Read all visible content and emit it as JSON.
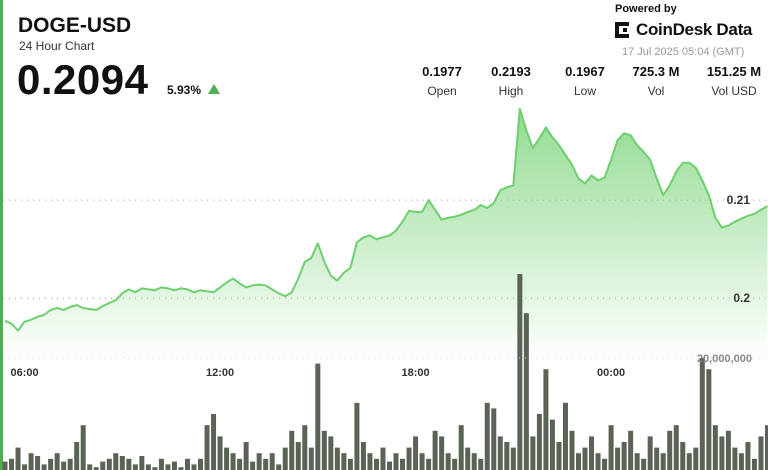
{
  "header": {
    "symbol": "DOGE-USD",
    "subtitle": "24 Hour Chart",
    "price": "0.2094",
    "change": "5.93%",
    "powered_by": "Powered by",
    "brand": "CoinDesk Data",
    "timestamp": "17 Jul 2025 05:04 (GMT)"
  },
  "stats": [
    {
      "value": "0.1977",
      "label": "Open"
    },
    {
      "value": "0.2193",
      "label": "High"
    },
    {
      "value": "0.1967",
      "label": "Low"
    },
    {
      "value": "725.3 M",
      "label": "Vol"
    },
    {
      "value": "151.25 M",
      "label": "Vol USD"
    }
  ],
  "chart_data": {
    "type": "area",
    "categories": [
      null,
      null,
      null,
      "06:00",
      null,
      null,
      null,
      null,
      null,
      null,
      null,
      null,
      null,
      null,
      null,
      null,
      null,
      null,
      null,
      null,
      null,
      null,
      null,
      null,
      null,
      null,
      null,
      null,
      null,
      null,
      null,
      null,
      null,
      "12:00",
      null,
      null,
      null,
      null,
      null,
      null,
      null,
      null,
      null,
      null,
      null,
      null,
      null,
      null,
      null,
      null,
      null,
      null,
      null,
      null,
      null,
      null,
      null,
      null,
      null,
      null,
      null,
      null,
      null,
      "18:00",
      null,
      null,
      null,
      null,
      null,
      null,
      null,
      null,
      null,
      null,
      null,
      null,
      null,
      null,
      null,
      null,
      null,
      null,
      null,
      null,
      null,
      null,
      null,
      null,
      null,
      null,
      null,
      null,
      null,
      "00:00",
      null,
      null,
      null,
      null,
      null,
      null,
      null,
      null,
      null,
      null,
      null,
      null,
      null,
      null,
      null,
      null,
      null,
      null,
      null,
      null,
      null,
      null,
      null,
      null
    ],
    "values": [
      0.1977,
      0.1974,
      0.1967,
      0.1976,
      0.1978,
      0.1981,
      0.1983,
      0.1988,
      0.199,
      0.1988,
      0.1991,
      0.1993,
      0.199,
      0.1989,
      0.1988,
      0.1992,
      0.1995,
      0.1998,
      0.2005,
      0.2009,
      0.2006,
      0.201,
      0.2009,
      0.2008,
      0.2011,
      0.201,
      0.2008,
      0.201,
      0.2009,
      0.2006,
      0.2008,
      0.2007,
      0.2006,
      0.2011,
      0.2016,
      0.202,
      0.2015,
      0.2011,
      0.2013,
      0.2014,
      0.2013,
      0.2009,
      0.2005,
      0.2002,
      0.2006,
      0.202,
      0.2037,
      0.2041,
      0.2056,
      0.2037,
      0.2023,
      0.2018,
      0.2026,
      0.2031,
      0.2057,
      0.2062,
      0.2064,
      0.206,
      0.2062,
      0.2064,
      0.2069,
      0.2078,
      0.2089,
      0.2088,
      0.2088,
      0.21,
      0.209,
      0.208,
      0.2082,
      0.2083,
      0.2085,
      0.2088,
      0.209,
      0.2095,
      0.2092,
      0.2097,
      0.211,
      0.2113,
      0.2115,
      0.2193,
      0.2171,
      0.2153,
      0.2163,
      0.2174,
      0.2164,
      0.2156,
      0.2146,
      0.2136,
      0.2122,
      0.2117,
      0.2125,
      0.212,
      0.2123,
      0.2141,
      0.2161,
      0.2168,
      0.2166,
      0.2156,
      0.2149,
      0.2141,
      0.2122,
      0.2105,
      0.2115,
      0.2129,
      0.2138,
      0.2138,
      0.2133,
      0.212,
      0.2105,
      0.2082,
      0.2072,
      0.2074,
      0.2078,
      0.2081,
      0.2084,
      0.2086,
      0.209,
      0.2094
    ],
    "color": "#6dcf6d",
    "ylim": [
      0.1937,
      0.2202
    ],
    "yticks": [
      0.2,
      0.21
    ],
    "grid": true,
    "volume": {
      "type": "bar",
      "color": "#5b6356",
      "values": [
        1500000,
        2000000,
        4000000,
        1000000,
        3000000,
        2500000,
        1000000,
        2000000,
        3000000,
        1500000,
        2000000,
        5000000,
        8000000,
        1000000,
        500000,
        1500000,
        2000000,
        3000000,
        2500000,
        2000000,
        1000000,
        2500000,
        1000000,
        500000,
        2000000,
        1000000,
        1500000,
        500000,
        2000000,
        1000000,
        2000000,
        8000000,
        10000000,
        6000000,
        4000000,
        3000000,
        2000000,
        5000000,
        1500000,
        3000000,
        2000000,
        3000000,
        1000000,
        4000000,
        7000000,
        5000000,
        8000000,
        4000000,
        19000000,
        7000000,
        6000000,
        4000000,
        3000000,
        2000000,
        12000000,
        5000000,
        3000000,
        2000000,
        4000000,
        1500000,
        3000000,
        2000000,
        4000000,
        6000000,
        3000000,
        2000000,
        7000000,
        6000000,
        3000000,
        2000000,
        8000000,
        4000000,
        3000000,
        2000000,
        12000000,
        11000000,
        6000000,
        5000000,
        4000000,
        35000000,
        28000000,
        6000000,
        10000000,
        18000000,
        9000000,
        5000000,
        12000000,
        7000000,
        3000000,
        4000000,
        6000000,
        3000000,
        2000000,
        8000000,
        4000000,
        5000000,
        7000000,
        3000000,
        2000000,
        6000000,
        4000000,
        3000000,
        7000000,
        8000000,
        5000000,
        3000000,
        4000000,
        20000000,
        18000000,
        8000000,
        6000000,
        7000000,
        4000000,
        3000000,
        5000000,
        2000000,
        6000000,
        8000000
      ],
      "ylim": [
        0,
        40000000
      ],
      "yticks": [
        {
          "value": 20000000,
          "label": "20,000,000"
        }
      ]
    }
  }
}
